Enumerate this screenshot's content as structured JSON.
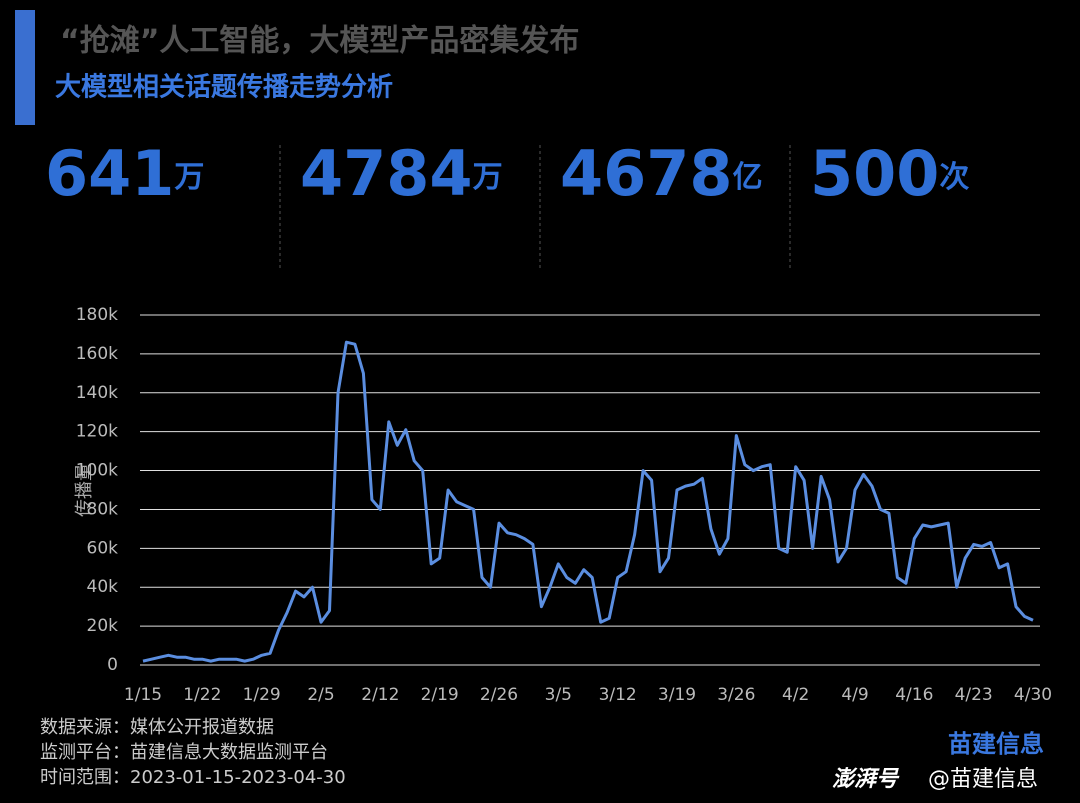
{
  "header": {
    "title": "“抢滩”人工智能，大模型产品密集发布",
    "subtitle": "大模型相关话题传播走势分析"
  },
  "stats": [
    {
      "value": 641,
      "unit": "万"
    },
    {
      "value": 4784,
      "unit": "万"
    },
    {
      "value": 4678,
      "unit": "亿"
    },
    {
      "value": 500,
      "unit": "次"
    }
  ],
  "chart_data": {
    "type": "line",
    "ylabel": "传播量",
    "color": "#5b8ee0",
    "grid": true,
    "categories": [
      "1/15",
      null,
      null,
      null,
      null,
      null,
      null,
      "1/22",
      null,
      null,
      null,
      null,
      null,
      null,
      "1/29",
      null,
      null,
      null,
      null,
      null,
      null,
      "2/5",
      null,
      null,
      null,
      null,
      null,
      null,
      "2/12",
      null,
      null,
      null,
      null,
      null,
      null,
      "2/19",
      null,
      null,
      null,
      null,
      null,
      null,
      "2/26",
      null,
      null,
      null,
      null,
      null,
      null,
      "3/5",
      null,
      null,
      null,
      null,
      null,
      null,
      "3/12",
      null,
      null,
      null,
      null,
      null,
      null,
      "3/19",
      null,
      null,
      null,
      null,
      null,
      null,
      "3/26",
      null,
      null,
      null,
      null,
      null,
      null,
      "4/2",
      null,
      null,
      null,
      null,
      null,
      null,
      "4/9",
      null,
      null,
      null,
      null,
      null,
      null,
      "4/16",
      null,
      null,
      null,
      null,
      null,
      null,
      "4/23",
      null,
      null,
      null,
      null,
      null,
      null,
      "4/30"
    ],
    "values": [
      2000,
      3000,
      4000,
      5000,
      4000,
      4000,
      3000,
      3000,
      2000,
      3000,
      3000,
      3000,
      2000,
      3000,
      5000,
      6000,
      18000,
      27000,
      38000,
      35000,
      40000,
      22000,
      28000,
      140000,
      166000,
      165000,
      150000,
      85000,
      80000,
      125000,
      113000,
      121000,
      105000,
      100000,
      52000,
      55000,
      90000,
      84000,
      82000,
      80000,
      45000,
      40000,
      73000,
      68000,
      67000,
      65000,
      62000,
      30000,
      40000,
      52000,
      45000,
      42000,
      49000,
      45000,
      22000,
      24000,
      45000,
      48000,
      67000,
      100000,
      95000,
      48000,
      55000,
      90000,
      92000,
      93000,
      96000,
      70000,
      57000,
      65000,
      118000,
      103000,
      100000,
      102000,
      103000,
      60000,
      58000,
      102000,
      95000,
      60000,
      97000,
      85000,
      53000,
      60000,
      90000,
      98000,
      92000,
      80000,
      78000,
      45000,
      42000,
      65000,
      72000,
      71000,
      72000,
      73000,
      40000,
      55000,
      62000,
      61000,
      63000,
      50000,
      52000,
      30000,
      25000,
      23000
    ],
    "ylim": [
      0,
      180000
    ],
    "yticks": [
      0,
      {
        "value": 20000,
        "label": "20k"
      },
      {
        "value": 40000,
        "label": "40k"
      },
      {
        "value": 60000,
        "label": "60k"
      },
      {
        "value": 80000,
        "label": "80k"
      },
      {
        "value": 100000,
        "label": "100k"
      },
      {
        "value": 120000,
        "label": "120k"
      },
      {
        "value": 140000,
        "label": "140k"
      },
      {
        "value": 160000,
        "label": "160k"
      },
      {
        "value": 180000,
        "label": "180k"
      }
    ]
  },
  "footer": {
    "source": "数据来源：媒体公开报道数据",
    "platform": "监测平台：苗建信息大数据监测平台",
    "range": "时间范围：2023-01-15-2023-04-30",
    "logo": "苗建信息",
    "brand": "澎湃号",
    "account": "@苗建信息"
  }
}
